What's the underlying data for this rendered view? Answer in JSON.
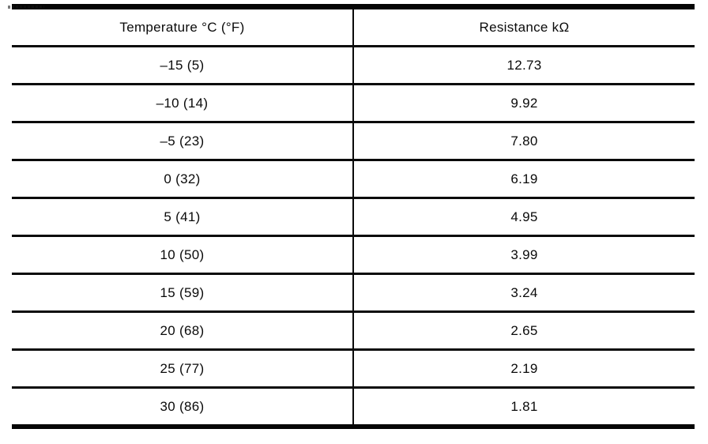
{
  "table": {
    "columns": [
      {
        "label": "Temperature °C (°F)"
      },
      {
        "label": "Resistance kΩ"
      }
    ],
    "rows": [
      {
        "temperature": "–15 (5)",
        "resistance": "12.73"
      },
      {
        "temperature": "–10 (14)",
        "resistance": "9.92"
      },
      {
        "temperature": "–5 (23)",
        "resistance": "7.80"
      },
      {
        "temperature": "0 (32)",
        "resistance": "6.19"
      },
      {
        "temperature": "5 (41)",
        "resistance": "4.95"
      },
      {
        "temperature": "10 (50)",
        "resistance": "3.99"
      },
      {
        "temperature": "15 (59)",
        "resistance": "3.24"
      },
      {
        "temperature": "20 (68)",
        "resistance": "2.65"
      },
      {
        "temperature": "25 (77)",
        "resistance": "2.19"
      },
      {
        "temperature": "30 (86)",
        "resistance": "1.81"
      }
    ]
  }
}
